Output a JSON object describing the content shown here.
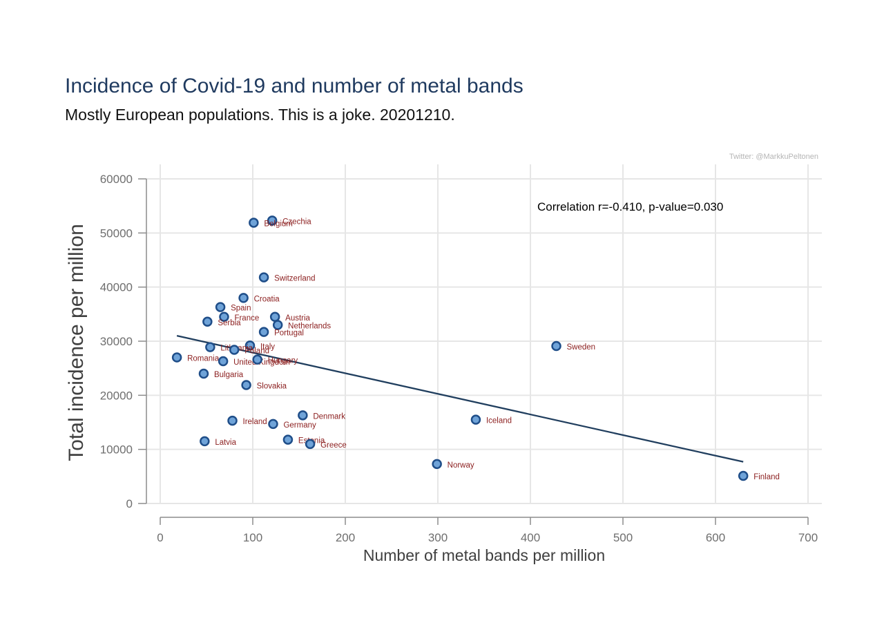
{
  "chart_data": {
    "type": "scatter",
    "title": "Incidence of Covid-19 and number of metal bands",
    "subtitle": "Mostly European populations. This is a joke. 20201210.",
    "xlabel": "Number of metal bands per million",
    "ylabel": "Total incidence per million",
    "xlim": [
      0,
      700
    ],
    "ylim": [
      0,
      60000
    ],
    "xticks": [
      0,
      100,
      200,
      300,
      400,
      500,
      600,
      700
    ],
    "yticks": [
      0,
      10000,
      20000,
      30000,
      40000,
      50000,
      60000
    ],
    "grid": true,
    "annotation": "Correlation r=-0.410, p-value=0.030",
    "credit": "Twitter: @MarkkuPeltonen",
    "fit_line": {
      "x": [
        18,
        630
      ],
      "y": [
        31000,
        7700
      ]
    },
    "points": [
      {
        "label": "Czechia",
        "x": 121,
        "y": 52300
      },
      {
        "label": "Belgium",
        "x": 101,
        "y": 51900
      },
      {
        "label": "Switzerland",
        "x": 112,
        "y": 41800
      },
      {
        "label": "Croatia",
        "x": 90,
        "y": 38000
      },
      {
        "label": "Spain",
        "x": 65,
        "y": 36300
      },
      {
        "label": "France",
        "x": 69,
        "y": 34500
      },
      {
        "label": "Serbia",
        "x": 51,
        "y": 33600
      },
      {
        "label": "Austria",
        "x": 124,
        "y": 34500
      },
      {
        "label": "Netherlands",
        "x": 127,
        "y": 33000
      },
      {
        "label": "Portugal",
        "x": 112,
        "y": 31700
      },
      {
        "label": "Italy",
        "x": 97,
        "y": 29200
      },
      {
        "label": "Lithuania",
        "x": 54,
        "y": 28900
      },
      {
        "label": "Poland",
        "x": 80,
        "y": 28400
      },
      {
        "label": "Romania",
        "x": 18,
        "y": 27000
      },
      {
        "label": "United Kingdom",
        "x": 68,
        "y": 26300
      },
      {
        "label": "Hungary",
        "x": 105,
        "y": 26600
      },
      {
        "label": "Bulgaria",
        "x": 47,
        "y": 24000
      },
      {
        "label": "Slovakia",
        "x": 93,
        "y": 21900
      },
      {
        "label": "Sweden",
        "x": 428,
        "y": 29100
      },
      {
        "label": "Denmark",
        "x": 154,
        "y": 16300
      },
      {
        "label": "Ireland",
        "x": 78,
        "y": 15300
      },
      {
        "label": "Germany",
        "x": 122,
        "y": 14700
      },
      {
        "label": "Iceland",
        "x": 341,
        "y": 15500
      },
      {
        "label": "Latvia",
        "x": 48,
        "y": 11500
      },
      {
        "label": "Estonia",
        "x": 138,
        "y": 11800
      },
      {
        "label": "Greece",
        "x": 162,
        "y": 11000
      },
      {
        "label": "Norway",
        "x": 299,
        "y": 7300
      },
      {
        "label": "Finland",
        "x": 630,
        "y": 5100
      }
    ],
    "colors": {
      "title": "#1f3a5f",
      "point_fill": "#6fa3d8",
      "point_edge": "#1f4e89",
      "point_label": "#8b1e1e",
      "fit_line": "#203e5e",
      "grid": "#e6e6e6"
    }
  }
}
